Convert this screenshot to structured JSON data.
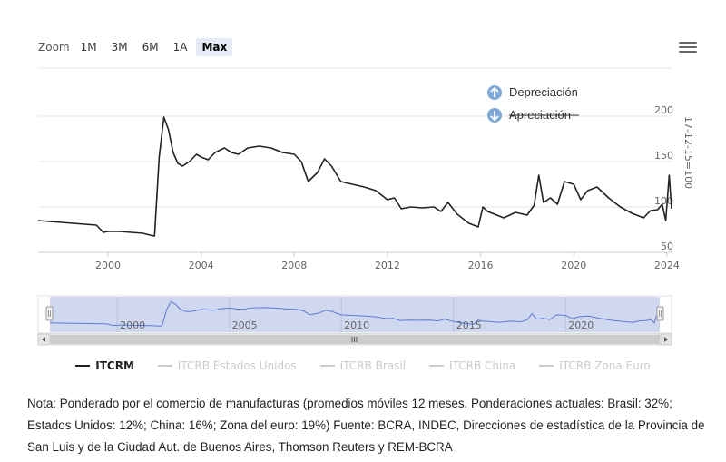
{
  "zoom": {
    "label": "Zoom",
    "buttons": [
      "1M",
      "3M",
      "6M",
      "1A",
      "Max"
    ],
    "active": "Max"
  },
  "menu_icon": "hamburger-menu-icon",
  "colors": {
    "series": "#222222",
    "navigator_fill": "#c8d1ec",
    "navigator_line": "#3a5bc7",
    "icon": "#7fa9d6",
    "grid": "#e6e6e6",
    "legend_off": "#cccccc"
  },
  "legend": {
    "items": [
      {
        "label": "ITCRM",
        "active": true
      },
      {
        "label": "ITCRB Estados Unidos",
        "active": false
      },
      {
        "label": "ITCRB Brasil",
        "active": false
      },
      {
        "label": "ITCRB China",
        "active": false
      },
      {
        "label": "ITCRB Zona Euro",
        "active": false
      }
    ]
  },
  "annotations": {
    "up": {
      "label": "Depreciación",
      "icon": "arrow-up-circle-icon"
    },
    "down": {
      "label": "Apreciación",
      "icon": "arrow-down-circle-icon"
    }
  },
  "chart_data": {
    "type": "line",
    "title": "",
    "xlabel": "",
    "ylabel": "17-12-15=100",
    "xlim": [
      1997.0,
      2024.2
    ],
    "ylim": [
      50,
      200
    ],
    "x_ticks": [
      2000,
      2004,
      2008,
      2012,
      2016,
      2020,
      2024
    ],
    "y_ticks": [
      50,
      100,
      150,
      200
    ],
    "grid": true,
    "series": [
      {
        "name": "ITCRM",
        "x": [
          1997.0,
          1997.5,
          1998.0,
          1998.5,
          1999.0,
          1999.5,
          1999.8,
          2000.0,
          2000.5,
          2001.0,
          2001.5,
          2001.8,
          2002.0,
          2002.2,
          2002.4,
          2002.6,
          2002.8,
          2003.0,
          2003.2,
          2003.5,
          2003.8,
          2004.0,
          2004.3,
          2004.6,
          2005.0,
          2005.3,
          2005.6,
          2006.0,
          2006.5,
          2007.0,
          2007.5,
          2008.0,
          2008.3,
          2008.6,
          2009.0,
          2009.3,
          2009.6,
          2010.0,
          2010.5,
          2011.0,
          2011.5,
          2012.0,
          2012.3,
          2012.6,
          2013.0,
          2013.5,
          2014.0,
          2014.3,
          2014.6,
          2015.0,
          2015.5,
          2015.9,
          2016.1,
          2016.3,
          2016.6,
          2017.0,
          2017.5,
          2018.0,
          2018.3,
          2018.5,
          2018.7,
          2019.0,
          2019.3,
          2019.6,
          2020.0,
          2020.3,
          2020.6,
          2021.0,
          2021.5,
          2022.0,
          2022.5,
          2023.0,
          2023.3,
          2023.6,
          2023.8,
          2023.95,
          2024.1,
          2024.2
        ],
        "values": [
          85,
          84,
          83,
          82,
          81,
          80,
          72,
          73,
          73,
          72,
          71,
          69,
          68,
          155,
          199,
          185,
          160,
          148,
          145,
          150,
          158,
          155,
          152,
          160,
          165,
          160,
          158,
          165,
          167,
          165,
          160,
          158,
          150,
          128,
          138,
          153,
          145,
          128,
          125,
          122,
          118,
          108,
          110,
          98,
          100,
          99,
          100,
          95,
          105,
          92,
          82,
          78,
          100,
          95,
          92,
          88,
          94,
          91,
          102,
          135,
          105,
          110,
          103,
          128,
          125,
          108,
          118,
          122,
          110,
          100,
          93,
          88,
          96,
          97,
          103,
          85,
          135,
          98
        ]
      }
    ],
    "navigator": {
      "x_labels": [
        2000,
        2005,
        2010,
        2015,
        2020
      ],
      "range": [
        1997.0,
        2024.2
      ]
    }
  },
  "note": "Nota: Ponderado por el comercio de manufacturas (promedios móviles 12 meses. Ponderaciones actuales: Brasil: 32%; Estados Unidos: 12%; China: 16%; Zona del euro: 19%) Fuente: BCRA, INDEC, Direcciones de estadística de la Provincia de San Luis y de la Ciudad Aut. de Buenos Aires, Thomson Reuters y REM-BCRA"
}
